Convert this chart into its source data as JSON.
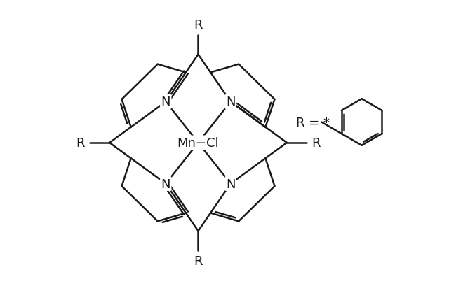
{
  "background_color": "#ffffff",
  "line_color": "#1a1a1a",
  "line_width": 1.8,
  "figsize": [
    6.4,
    4.1
  ],
  "dpi": 100,
  "xlim": [
    -3.8,
    5.2
  ],
  "ylim": [
    -3.8,
    3.8
  ]
}
